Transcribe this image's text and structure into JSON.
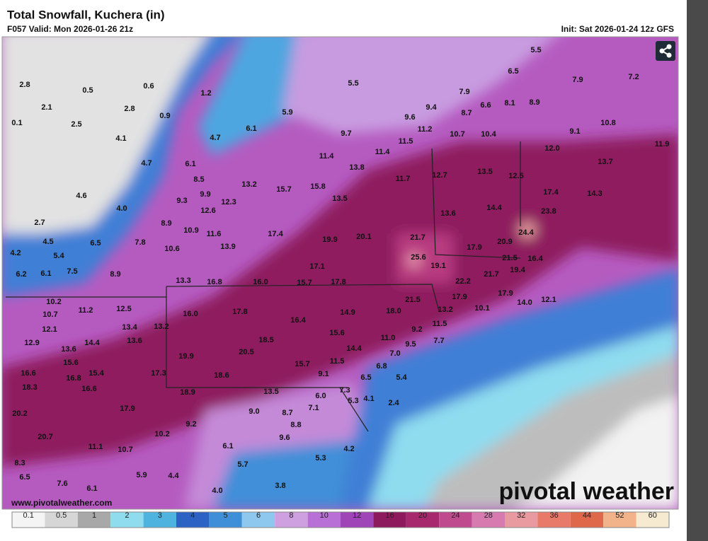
{
  "header": {
    "title": "Total Snowfall, Kuchera (in)",
    "valid": "F057 Valid: Mon 2026-01-26 21z",
    "init": "Init: Sat 2026-01-24 12z GFS"
  },
  "map": {
    "labels": [
      "5.5",
      "6.5",
      "7.2",
      "7.9",
      "0.5",
      "0.6",
      "5.5",
      "7.9",
      "1.2",
      "2.8",
      "2.1",
      "2.8",
      "0.9",
      "9.4",
      "6.6",
      "8.1",
      "8.9",
      "5.9",
      "8.7",
      "9.6",
      "0.1",
      "2.5",
      "6.1",
      "10.8",
      "11.2",
      "9.7",
      "9.1",
      "4.1",
      "4.7",
      "10.7",
      "10.4",
      "11.5",
      "11.9",
      "12.0",
      "11.4",
      "11.4",
      "4.7",
      "6.1",
      "13.7",
      "13.8",
      "13.5",
      "12.7",
      "12.5",
      "11.7",
      "8.5",
      "13.2",
      "15.7",
      "15.8",
      "4.6",
      "9.9",
      "17.4",
      "14.3",
      "13.5",
      "9.3",
      "12.3",
      "4.0",
      "12.6",
      "14.4",
      "23.8",
      "13.6",
      "2.7",
      "8.9",
      "10.9",
      "11.6",
      "17.4",
      "24.4",
      "4.5",
      "6.5",
      "7.8",
      "20.1",
      "19.9",
      "21.7",
      "20.9",
      "13.9",
      "10.6",
      "17.9",
      "4.2",
      "5.4",
      "25.6",
      "21.5",
      "16.4",
      "19.1",
      "17.1",
      "6.2",
      "6.1",
      "7.5",
      "8.9",
      "21.7",
      "19.4",
      "13.3",
      "16.8",
      "16.0",
      "15.7",
      "17.8",
      "22.2",
      "17.9",
      "17.9",
      "21.5",
      "10.2",
      "12.5",
      "14.0",
      "12.1",
      "11.2",
      "10.7",
      "16.0",
      "17.8",
      "14.9",
      "13.2",
      "10.1",
      "18.0",
      "16.4",
      "11.5",
      "13.4",
      "13.2",
      "12.1",
      "9.2",
      "15.6",
      "11.0",
      "12.9",
      "14.4",
      "13.6",
      "18.5",
      "9.5",
      "7.7",
      "13.6",
      "14.4",
      "20.5",
      "7.0",
      "19.9",
      "15.6",
      "15.7",
      "11.5",
      "6.8",
      "16.6",
      "15.4",
      "16.8",
      "17.3",
      "18.6",
      "9.1",
      "6.5",
      "5.4",
      "18.3",
      "16.6",
      "18.9",
      "13.5",
      "7.3",
      "6.0",
      "5.3",
      "4.1",
      "2.4",
      "17.9",
      "7.1",
      "9.0",
      "8.7",
      "20.2",
      "9.2",
      "8.8",
      "20.7",
      "10.2",
      "9.6",
      "11.1",
      "10.7",
      "6.1",
      "4.2",
      "5.3",
      "8.3",
      "5.7",
      "5.9",
      "4.4",
      "6.5",
      "7.6",
      "3.8",
      "6.1",
      "4.0"
    ],
    "watermark": "pivotal weather",
    "url": "www.pivotalweather.com"
  },
  "colorbar": {
    "labels": [
      "0.1",
      "0.5",
      "1",
      "2",
      "3",
      "4",
      "5",
      "6",
      "8",
      "10",
      "12",
      "16",
      "20",
      "24",
      "28",
      "32",
      "36",
      "44",
      "52",
      "60"
    ],
    "colors": [
      "#f4f4f4",
      "#d6d6d6",
      "#a8a8a8",
      "#8fdcef",
      "#4fb3e0",
      "#2c62c4",
      "#3f8fd8",
      "#8fc8ee",
      "#cfa0e0",
      "#b86fd6",
      "#a045b8",
      "#8e1a5e",
      "#a8286e",
      "#c04a8e",
      "#d77ab0",
      "#e89aa0",
      "#e87a6a",
      "#e0684a",
      "#f2b28a",
      "#f6ead0"
    ]
  }
}
